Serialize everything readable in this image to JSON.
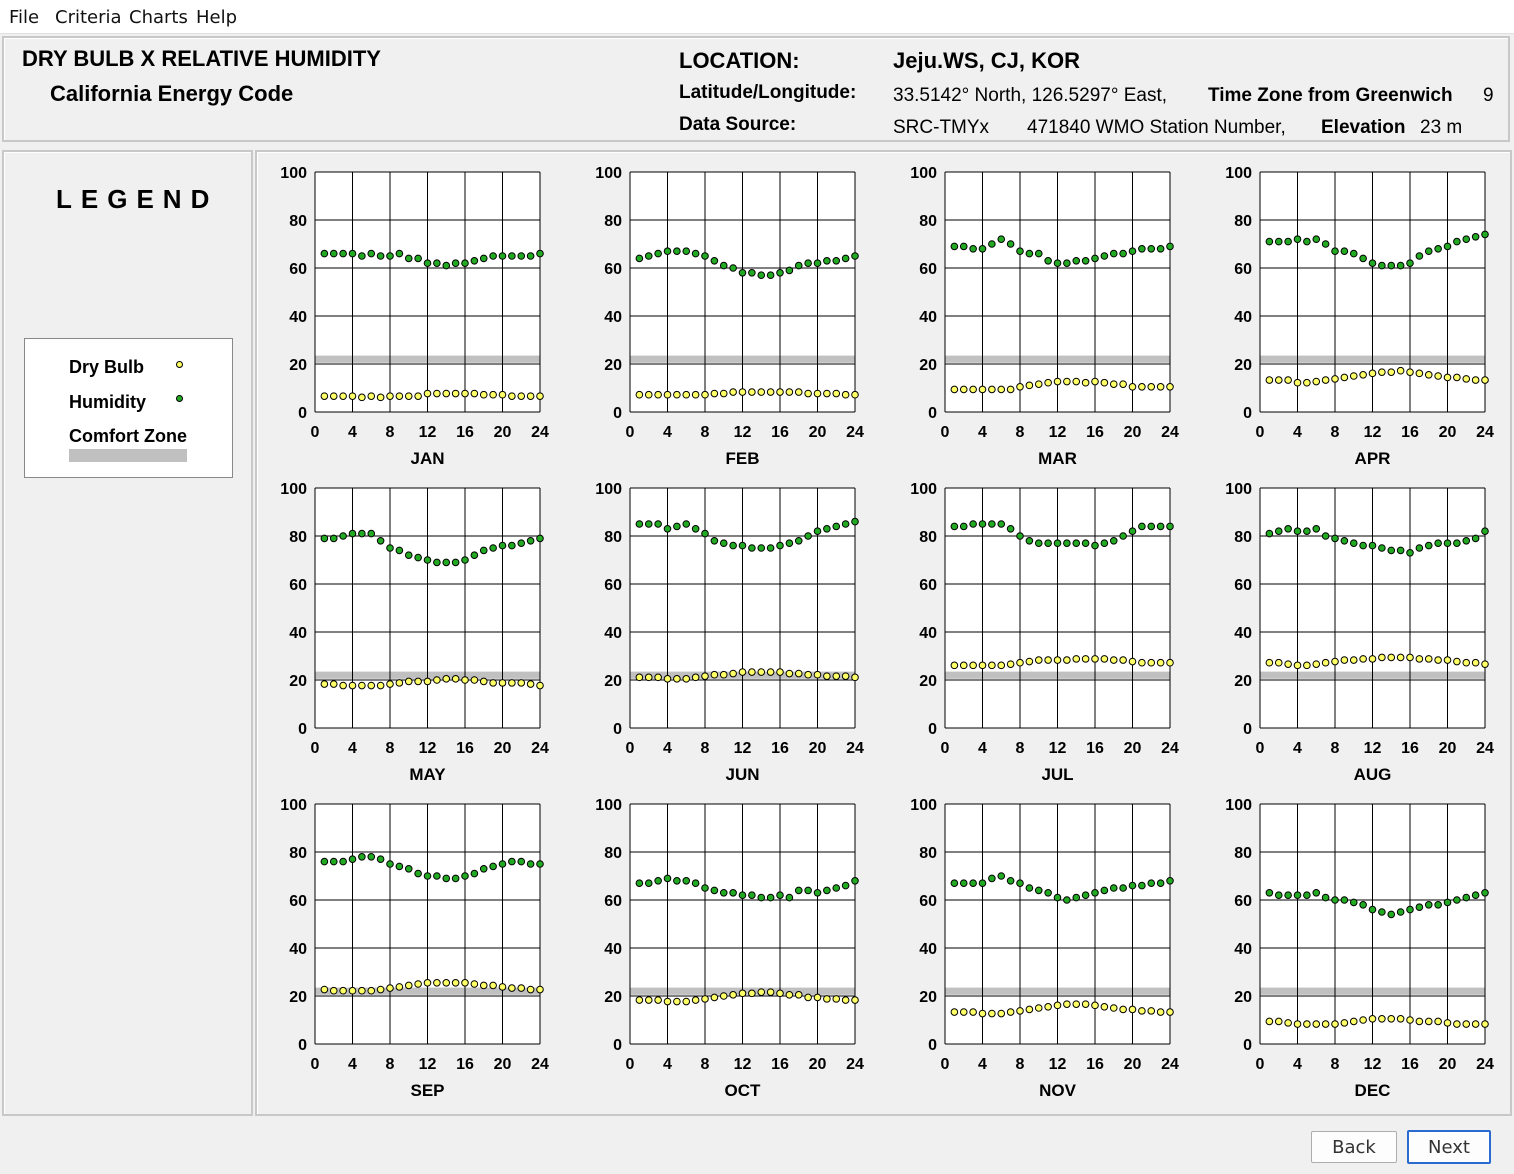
{
  "menu": {
    "file": "File",
    "criteria": "Criteria",
    "charts": "Charts",
    "help": "Help"
  },
  "header": {
    "title": "DRY BULB  X  RELATIVE HUMIDITY",
    "subtitle": "California Energy Code",
    "location_label": "LOCATION:",
    "location_value": "Jeju.WS, CJ, KOR",
    "latlon_label": "Latitude/Longitude:",
    "latlon_value": "33.5142° North, 126.5297° East,",
    "tz_label": "Time Zone from Greenwich",
    "tz_value": "9",
    "source_label": "Data Source:",
    "source_value": "SRC-TMYx",
    "wmo_value": "471840 WMO Station Number,",
    "elev_label": "Elevation",
    "elev_value": "23 m"
  },
  "legend": {
    "title": "LEGEND",
    "dry_bulb": "Dry Bulb",
    "humidity": "Humidity",
    "comfort_zone": "Comfort Zone"
  },
  "colors": {
    "dry_bulb": "#ffff66",
    "humidity": "#22aa22",
    "comfort_zone": "#c0c0c0",
    "accent": "#2a6bd1"
  },
  "buttons": {
    "back": "Back",
    "next": "Next"
  },
  "chart_data": {
    "type": "scatter",
    "x": [
      1,
      2,
      3,
      4,
      5,
      6,
      7,
      8,
      9,
      10,
      11,
      12,
      13,
      14,
      15,
      16,
      17,
      18,
      19,
      20,
      21,
      22,
      23,
      24
    ],
    "xlim": [
      0,
      24
    ],
    "ylim": [
      0,
      100
    ],
    "xticks": [
      "0",
      "4",
      "8",
      "12",
      "16",
      "20",
      "24"
    ],
    "yticks": [
      "0",
      "20",
      "40",
      "60",
      "80",
      "100"
    ],
    "comfort_zone": [
      20.5,
      23.5
    ],
    "months": [
      {
        "name": "JAN",
        "humidity": [
          66,
          66,
          66,
          66,
          65,
          66,
          65,
          65,
          66,
          64,
          64,
          62,
          62,
          61,
          62,
          62,
          63,
          64,
          65,
          65,
          65,
          65,
          65,
          66
        ],
        "dry_bulb": [
          6.6,
          6.6,
          6.6,
          6.6,
          6.1,
          6.6,
          6.1,
          6.6,
          6.6,
          6.6,
          6.6,
          7.7,
          7.7,
          7.7,
          7.7,
          7.7,
          7.7,
          7.2,
          7.2,
          7.2,
          6.6,
          6.6,
          6.6,
          6.6
        ]
      },
      {
        "name": "FEB",
        "humidity": [
          64,
          65,
          66,
          67,
          67,
          67,
          66,
          65,
          63,
          61,
          60,
          58,
          58,
          57,
          57,
          58,
          59,
          61,
          62,
          62,
          63,
          63,
          64,
          65
        ],
        "dry_bulb": [
          7.2,
          7.2,
          7.2,
          7.2,
          7.2,
          7.2,
          7.2,
          7.2,
          7.7,
          7.7,
          8.3,
          8.3,
          8.3,
          8.3,
          8.3,
          8.3,
          8.3,
          8.3,
          7.7,
          7.7,
          7.7,
          7.7,
          7.2,
          7.2
        ]
      },
      {
        "name": "MAR",
        "humidity": [
          69,
          69,
          68,
          68,
          70,
          72,
          70,
          67,
          66,
          66,
          63,
          62,
          62,
          63,
          63,
          64,
          65,
          66,
          66,
          67,
          68,
          68,
          68,
          69
        ],
        "dry_bulb": [
          9.4,
          9.4,
          9.4,
          9.4,
          9.4,
          9.4,
          9.4,
          10.5,
          11.1,
          11.6,
          12.2,
          12.7,
          12.7,
          12.7,
          12.2,
          12.7,
          12.2,
          11.6,
          11.6,
          10.5,
          10.5,
          10.5,
          10.5,
          10.5
        ]
      },
      {
        "name": "APR",
        "humidity": [
          71,
          71,
          71,
          72,
          71,
          72,
          70,
          67,
          67,
          66,
          64,
          62,
          61,
          61,
          61,
          62,
          65,
          67,
          68,
          69,
          71,
          72,
          73,
          74
        ],
        "dry_bulb": [
          13.3,
          13.3,
          13.3,
          12.2,
          12.2,
          12.7,
          13.3,
          13.8,
          14.4,
          15.0,
          15.5,
          16.1,
          16.6,
          16.6,
          17.2,
          16.6,
          16.1,
          15.5,
          15.0,
          14.4,
          14.4,
          13.8,
          13.3,
          13.3
        ]
      },
      {
        "name": "MAY",
        "humidity": [
          79,
          79,
          80,
          81,
          81,
          81,
          78,
          75,
          74,
          72,
          71,
          70,
          69,
          69,
          69,
          70,
          72,
          74,
          75,
          76,
          76,
          77,
          78,
          79
        ],
        "dry_bulb": [
          18.3,
          18.3,
          17.7,
          17.7,
          17.7,
          17.7,
          17.7,
          18.3,
          18.8,
          19.4,
          19.4,
          19.4,
          20.0,
          20.5,
          20.5,
          20.0,
          20.0,
          19.4,
          18.8,
          18.8,
          18.8,
          18.8,
          18.3,
          17.7
        ]
      },
      {
        "name": "JUN",
        "humidity": [
          85,
          85,
          85,
          83,
          84,
          85,
          83,
          81,
          78,
          77,
          76,
          76,
          75,
          75,
          75,
          76,
          77,
          78,
          80,
          82,
          83,
          84,
          85,
          86
        ],
        "dry_bulb": [
          21.1,
          21.1,
          21.1,
          20.5,
          20.5,
          20.5,
          21.1,
          21.6,
          22.2,
          22.2,
          22.7,
          23.3,
          23.3,
          23.3,
          23.3,
          23.3,
          22.7,
          22.7,
          22.2,
          22.2,
          21.6,
          21.6,
          21.6,
          21.1
        ]
      },
      {
        "name": "JUL",
        "humidity": [
          84,
          84,
          85,
          85,
          85,
          85,
          83,
          80,
          78,
          77,
          77,
          77,
          77,
          77,
          77,
          76,
          77,
          78,
          80,
          82,
          84,
          84,
          84,
          84
        ],
        "dry_bulb": [
          26.1,
          26.1,
          26.1,
          26.1,
          26.1,
          26.1,
          26.6,
          27.2,
          27.7,
          28.3,
          28.3,
          28.3,
          28.3,
          28.8,
          28.8,
          28.8,
          28.8,
          28.3,
          28.3,
          27.7,
          27.2,
          27.2,
          27.2,
          27.2
        ]
      },
      {
        "name": "AUG",
        "humidity": [
          81,
          82,
          83,
          82,
          82,
          83,
          80,
          79,
          78,
          77,
          76,
          76,
          75,
          74,
          74,
          73,
          75,
          76,
          77,
          77,
          77,
          78,
          79,
          82
        ],
        "dry_bulb": [
          27.2,
          27.2,
          26.6,
          26.1,
          26.1,
          26.6,
          27.2,
          27.7,
          28.3,
          28.3,
          28.8,
          28.8,
          29.4,
          29.4,
          29.4,
          29.4,
          28.8,
          28.8,
          28.3,
          28.3,
          27.7,
          27.2,
          27.2,
          26.6
        ]
      },
      {
        "name": "SEP",
        "humidity": [
          76,
          76,
          76,
          77,
          78,
          78,
          77,
          75,
          74,
          73,
          71,
          70,
          70,
          69,
          69,
          70,
          71,
          73,
          74,
          75,
          76,
          76,
          75,
          75
        ],
        "dry_bulb": [
          22.7,
          22.2,
          22.2,
          22.2,
          22.2,
          22.2,
          22.7,
          23.3,
          23.8,
          24.4,
          25.0,
          25.5,
          25.5,
          25.5,
          25.5,
          25.5,
          25.0,
          24.4,
          24.4,
          23.8,
          23.3,
          23.3,
          22.7,
          22.7
        ]
      },
      {
        "name": "OCT",
        "humidity": [
          67,
          67,
          68,
          69,
          68,
          68,
          67,
          65,
          64,
          63,
          63,
          62,
          62,
          61,
          61,
          62,
          61,
          64,
          64,
          63,
          64,
          65,
          66,
          68
        ],
        "dry_bulb": [
          18.3,
          18.3,
          18.3,
          17.7,
          17.7,
          17.7,
          18.3,
          18.8,
          19.4,
          20.0,
          20.5,
          21.1,
          21.1,
          21.6,
          21.6,
          21.1,
          20.5,
          20.5,
          19.4,
          19.4,
          18.8,
          18.8,
          18.3,
          18.3
        ]
      },
      {
        "name": "NOV",
        "humidity": [
          67,
          67,
          67,
          67,
          69,
          70,
          68,
          67,
          65,
          64,
          63,
          61,
          60,
          61,
          62,
          63,
          64,
          65,
          65,
          66,
          66,
          67,
          67,
          68
        ],
        "dry_bulb": [
          13.3,
          13.3,
          13.3,
          12.7,
          12.7,
          12.7,
          13.3,
          13.8,
          14.4,
          15.0,
          15.5,
          16.1,
          16.6,
          16.6,
          16.6,
          16.1,
          15.5,
          15.0,
          14.4,
          14.4,
          13.8,
          13.8,
          13.3,
          13.3
        ]
      },
      {
        "name": "DEC",
        "humidity": [
          63,
          62,
          62,
          62,
          62,
          63,
          61,
          60,
          60,
          59,
          58,
          56,
          55,
          54,
          55,
          56,
          57,
          58,
          58,
          59,
          60,
          61,
          62,
          63
        ],
        "dry_bulb": [
          9.4,
          9.4,
          8.8,
          8.3,
          8.3,
          8.3,
          8.3,
          8.3,
          8.8,
          9.4,
          10.0,
          10.5,
          10.5,
          10.5,
          10.5,
          10.0,
          9.4,
          9.4,
          9.4,
          8.8,
          8.3,
          8.3,
          8.3,
          8.3
        ]
      }
    ]
  }
}
